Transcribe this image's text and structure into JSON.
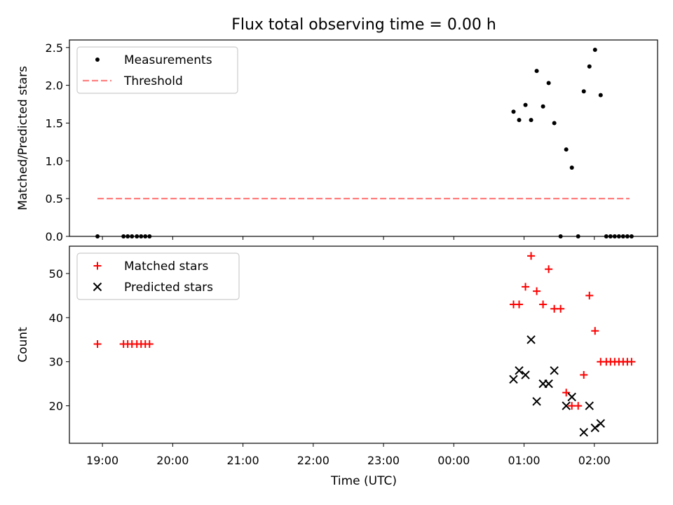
{
  "chart_data": {
    "title": "Flux total observing time = 0.00 h",
    "xlabel": "Time (UTC)",
    "x_tick_labels": [
      "19:00",
      "20:00",
      "21:00",
      "22:00",
      "23:00",
      "00:00",
      "01:00",
      "02:00"
    ],
    "x_tick_hours": [
      19,
      20,
      21,
      22,
      23,
      24,
      25,
      26
    ],
    "xlim": [
      18.53,
      26.9
    ],
    "panels": [
      {
        "type": "scatter",
        "ylabel": "Matched/Predicted stars",
        "ylim": [
          0,
          2.6
        ],
        "y_ticks": [
          0.0,
          0.5,
          1.0,
          1.5,
          2.0,
          2.5
        ],
        "y_tick_labels": [
          "0.0",
          "0.5",
          "1.0",
          "1.5",
          "2.0",
          "2.5"
        ],
        "legend_position": "upper-left",
        "series": [
          {
            "name": "Measurements",
            "marker": "dot",
            "color": "#000000",
            "points": [
              [
                18.93,
                0.0
              ],
              [
                19.3,
                0.0
              ],
              [
                19.36,
                0.0
              ],
              [
                19.42,
                0.0
              ],
              [
                19.49,
                0.0
              ],
              [
                19.55,
                0.0
              ],
              [
                19.61,
                0.0
              ],
              [
                19.67,
                0.0
              ],
              [
                24.85,
                1.65
              ],
              [
                24.93,
                1.54
              ],
              [
                25.02,
                1.74
              ],
              [
                25.1,
                1.54
              ],
              [
                25.18,
                2.19
              ],
              [
                25.27,
                1.72
              ],
              [
                25.35,
                2.03
              ],
              [
                25.43,
                1.5
              ],
              [
                25.52,
                0.0
              ],
              [
                25.6,
                1.15
              ],
              [
                25.68,
                0.91
              ],
              [
                25.77,
                0.0
              ],
              [
                25.85,
                1.92
              ],
              [
                25.93,
                2.25
              ],
              [
                26.01,
                2.47
              ],
              [
                26.09,
                1.87
              ],
              [
                26.17,
                0.0
              ],
              [
                26.23,
                0.0
              ],
              [
                26.29,
                0.0
              ],
              [
                26.35,
                0.0
              ],
              [
                26.41,
                0.0
              ],
              [
                26.47,
                0.0
              ],
              [
                26.53,
                0.0
              ]
            ]
          },
          {
            "name": "Threshold",
            "marker": "dashed-line",
            "color": "#ff7f7f",
            "points": [
              [
                18.93,
                0.5
              ],
              [
                26.5,
                0.5
              ]
            ]
          }
        ]
      },
      {
        "type": "scatter",
        "ylabel": "Count",
        "ylim": [
          11.5,
          56.2
        ],
        "y_ticks": [
          20,
          30,
          40,
          50
        ],
        "y_tick_labels": [
          "20",
          "30",
          "40",
          "50"
        ],
        "legend_position": "upper-left",
        "series": [
          {
            "name": "Matched stars",
            "marker": "plus",
            "color": "#ff0000",
            "points": [
              [
                18.93,
                34
              ],
              [
                19.3,
                34
              ],
              [
                19.36,
                34
              ],
              [
                19.42,
                34
              ],
              [
                19.49,
                34
              ],
              [
                19.55,
                34
              ],
              [
                19.61,
                34
              ],
              [
                19.67,
                34
              ],
              [
                24.85,
                43
              ],
              [
                24.93,
                43
              ],
              [
                25.02,
                47
              ],
              [
                25.1,
                54
              ],
              [
                25.18,
                46
              ],
              [
                25.27,
                43
              ],
              [
                25.35,
                51
              ],
              [
                25.43,
                42
              ],
              [
                25.52,
                42
              ],
              [
                25.6,
                23
              ],
              [
                25.68,
                20
              ],
              [
                25.77,
                20
              ],
              [
                25.85,
                27
              ],
              [
                25.93,
                45
              ],
              [
                26.01,
                37
              ],
              [
                26.09,
                30
              ],
              [
                26.17,
                30
              ],
              [
                26.23,
                30
              ],
              [
                26.29,
                30
              ],
              [
                26.35,
                30
              ],
              [
                26.41,
                30
              ],
              [
                26.47,
                30
              ],
              [
                26.53,
                30
              ]
            ]
          },
          {
            "name": "Predicted stars",
            "marker": "x",
            "color": "#000000",
            "points": [
              [
                24.85,
                26
              ],
              [
                24.93,
                28
              ],
              [
                25.02,
                27
              ],
              [
                25.1,
                35
              ],
              [
                25.18,
                21
              ],
              [
                25.27,
                25
              ],
              [
                25.35,
                25
              ],
              [
                25.43,
                28
              ],
              [
                25.6,
                20
              ],
              [
                25.68,
                22
              ],
              [
                25.85,
                14
              ],
              [
                25.93,
                20
              ],
              [
                26.01,
                15
              ],
              [
                26.09,
                16
              ]
            ]
          }
        ]
      }
    ]
  }
}
